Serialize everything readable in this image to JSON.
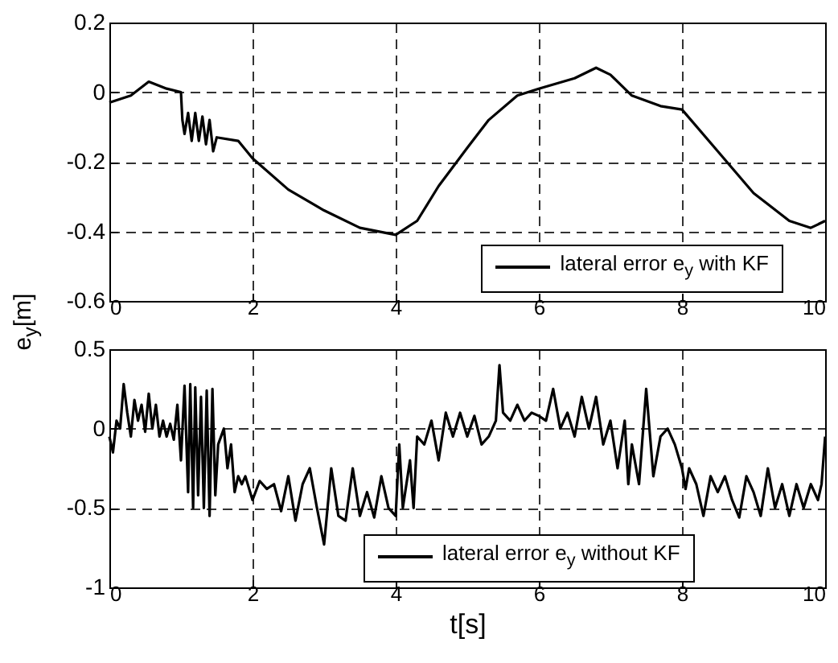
{
  "chart_data": [
    {
      "type": "line",
      "ylabel": "e$_{y}$[m]",
      "xlim": [
        0,
        10
      ],
      "xticks": [
        0,
        2,
        4,
        6,
        8,
        10
      ],
      "ylim": [
        -0.6,
        0.2
      ],
      "yticks": [
        -0.6,
        -0.4,
        -0.2,
        0,
        0.2
      ],
      "grid": true,
      "legend": "bottom right",
      "line_style": "solid",
      "series": [
        {
          "name": "lateral error e$_{y}$ with KF",
          "color": "#000000",
          "x": [
            0,
            0.3,
            0.55,
            0.8,
            1.0,
            1.02,
            1.05,
            1.1,
            1.15,
            1.2,
            1.25,
            1.3,
            1.35,
            1.4,
            1.45,
            1.5,
            1.8,
            2.0,
            2.5,
            3.0,
            3.5,
            4.0,
            4.3,
            4.6,
            5.0,
            5.3,
            5.7,
            6.0,
            6.5,
            6.8,
            7.0,
            7.3,
            7.7,
            8.0,
            8.5,
            9.0,
            9.5,
            9.8,
            10
          ],
          "values": [
            -0.03,
            -0.01,
            0.03,
            0.01,
            0.0,
            -0.08,
            -0.12,
            -0.06,
            -0.14,
            -0.06,
            -0.14,
            -0.07,
            -0.15,
            -0.08,
            -0.17,
            -0.13,
            -0.14,
            -0.19,
            -0.28,
            -0.34,
            -0.39,
            -0.41,
            -0.37,
            -0.27,
            -0.16,
            -0.08,
            -0.01,
            0.01,
            0.04,
            0.07,
            0.05,
            -0.01,
            -0.04,
            -0.05,
            -0.17,
            -0.29,
            -0.37,
            -0.39,
            -0.37
          ]
        }
      ]
    },
    {
      "type": "line",
      "xlabel": "t[s]",
      "xlim": [
        0,
        10
      ],
      "xticks": [
        0,
        2,
        4,
        6,
        8,
        10
      ],
      "ylim": [
        -1,
        0.5
      ],
      "yticks": [
        -1,
        -0.5,
        0,
        0.5
      ],
      "grid": true,
      "legend": "bottom",
      "line_style": "solid",
      "series": [
        {
          "name": "lateral error e$_{y}$ without KF",
          "color": "#000000",
          "x": [
            0,
            0.05,
            0.1,
            0.15,
            0.2,
            0.25,
            0.3,
            0.35,
            0.4,
            0.45,
            0.5,
            0.55,
            0.6,
            0.65,
            0.7,
            0.75,
            0.8,
            0.85,
            0.9,
            0.95,
            1.0,
            1.05,
            1.1,
            1.13,
            1.17,
            1.2,
            1.24,
            1.28,
            1.32,
            1.36,
            1.4,
            1.44,
            1.48,
            1.52,
            1.6,
            1.65,
            1.7,
            1.75,
            1.8,
            1.85,
            1.9,
            2.0,
            2.1,
            2.2,
            2.3,
            2.4,
            2.5,
            2.6,
            2.7,
            2.8,
            2.9,
            3.0,
            3.1,
            3.2,
            3.3,
            3.4,
            3.5,
            3.6,
            3.7,
            3.8,
            3.9,
            4.0,
            4.05,
            4.1,
            4.2,
            4.25,
            4.3,
            4.4,
            4.5,
            4.6,
            4.7,
            4.8,
            4.9,
            5.0,
            5.1,
            5.2,
            5.3,
            5.4,
            5.45,
            5.5,
            5.6,
            5.7,
            5.8,
            5.9,
            6.0,
            6.1,
            6.2,
            6.3,
            6.4,
            6.5,
            6.6,
            6.7,
            6.8,
            6.9,
            7.0,
            7.1,
            7.2,
            7.25,
            7.3,
            7.4,
            7.5,
            7.6,
            7.7,
            7.8,
            7.9,
            8.0,
            8.05,
            8.1,
            8.2,
            8.3,
            8.4,
            8.5,
            8.6,
            8.7,
            8.8,
            8.9,
            9.0,
            9.1,
            9.2,
            9.3,
            9.4,
            9.5,
            9.6,
            9.7,
            9.8,
            9.9,
            9.95,
            10.0
          ],
          "values": [
            -0.05,
            -0.15,
            0.05,
            0.0,
            0.28,
            0.1,
            -0.05,
            0.18,
            0.05,
            0.15,
            -0.02,
            0.22,
            0.0,
            0.15,
            -0.05,
            0.05,
            -0.05,
            0.03,
            -0.07,
            0.15,
            -0.2,
            0.27,
            -0.4,
            0.28,
            -0.5,
            0.26,
            -0.42,
            0.2,
            -0.5,
            0.24,
            -0.55,
            0.25,
            -0.42,
            -0.1,
            0.0,
            -0.25,
            -0.1,
            -0.4,
            -0.3,
            -0.35,
            -0.3,
            -0.45,
            -0.33,
            -0.38,
            -0.35,
            -0.52,
            -0.3,
            -0.58,
            -0.35,
            -0.25,
            -0.5,
            -0.73,
            -0.25,
            -0.55,
            -0.58,
            -0.25,
            -0.55,
            -0.4,
            -0.56,
            -0.3,
            -0.5,
            -0.55,
            -0.1,
            -0.5,
            -0.2,
            -0.5,
            -0.05,
            -0.1,
            0.05,
            -0.2,
            0.1,
            -0.05,
            0.1,
            -0.05,
            0.08,
            -0.1,
            -0.05,
            0.05,
            0.4,
            0.1,
            0.05,
            0.15,
            0.05,
            0.1,
            0.08,
            0.05,
            0.25,
            0.0,
            0.1,
            -0.05,
            0.2,
            0.0,
            0.2,
            -0.1,
            0.05,
            -0.25,
            0.05,
            -0.35,
            -0.1,
            -0.35,
            0.25,
            -0.3,
            -0.05,
            0.0,
            -0.1,
            -0.25,
            -0.38,
            -0.25,
            -0.35,
            -0.55,
            -0.3,
            -0.4,
            -0.3,
            -0.45,
            -0.56,
            -0.3,
            -0.4,
            -0.55,
            -0.25,
            -0.5,
            -0.35,
            -0.55,
            -0.35,
            -0.5,
            -0.35,
            -0.45,
            -0.35,
            -0.05
          ]
        }
      ]
    }
  ]
}
